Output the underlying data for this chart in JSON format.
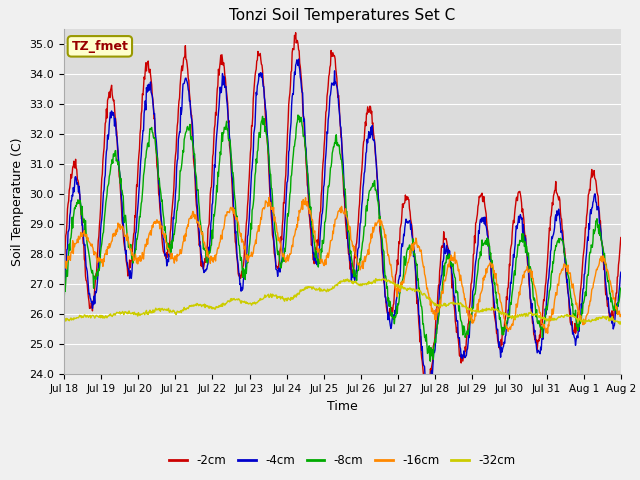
{
  "title": "Tonzi Soil Temperatures Set C",
  "xlabel": "Time",
  "ylabel": "Soil Temperature (C)",
  "annotation": "TZ_fmet",
  "ylim": [
    24.0,
    35.5
  ],
  "yticks": [
    24.0,
    25.0,
    26.0,
    27.0,
    28.0,
    29.0,
    30.0,
    31.0,
    32.0,
    33.0,
    34.0,
    35.0
  ],
  "bg_color": "#dcdcdc",
  "series_colors": [
    "#cc0000",
    "#0000cc",
    "#00aa00",
    "#ff8800",
    "#cccc00"
  ],
  "series_labels": [
    "-2cm",
    "-4cm",
    "-8cm",
    "-16cm",
    "-32cm"
  ],
  "n_points": 960,
  "x_start": 18.0,
  "x_end": 33.0,
  "xtick_positions": [
    18,
    19,
    20,
    21,
    22,
    23,
    24,
    25,
    26,
    27,
    28,
    29,
    30,
    31,
    32,
    33
  ],
  "xtick_labels": [
    "Jul 18",
    "Jul 19",
    "Jul 20",
    "Jul 21",
    "Jul 22",
    "Jul 23",
    "Jul 24",
    "Jul 25",
    "Jul 26",
    "Jul 27",
    "Jul 28",
    "Jul 29",
    "Jul 30",
    "Jul 31",
    "Aug 1",
    "Aug 2"
  ]
}
